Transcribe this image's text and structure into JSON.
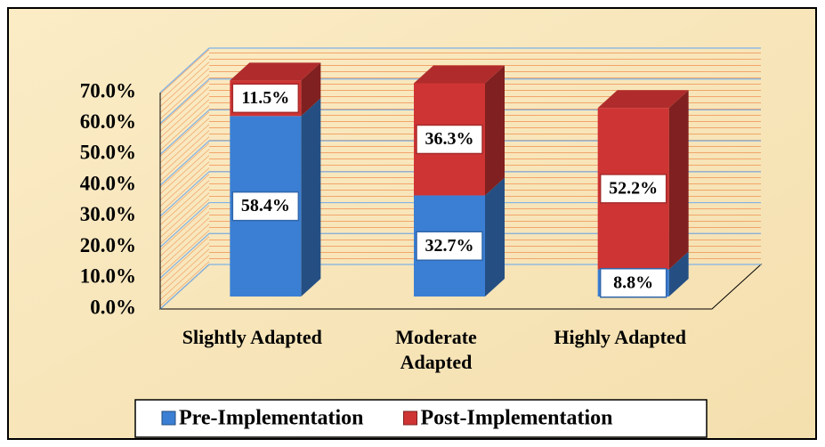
{
  "chart_data": {
    "type": "bar3d_stacked",
    "categories": [
      "Slightly Adapted",
      "Moderate Adapted",
      "Highly Adapted"
    ],
    "series": [
      {
        "name": "Pre-Implementation",
        "color": "#3b7fd4",
        "values": [
          58.4,
          32.7,
          8.8
        ],
        "value_labels": [
          "58.4%",
          "32.7%",
          "8.8%"
        ]
      },
      {
        "name": "Post-Implementation",
        "color": "#cf3434",
        "values": [
          11.5,
          36.3,
          52.2
        ],
        "value_labels": [
          "11.5%",
          "36.3%",
          "52.2%"
        ]
      }
    ],
    "ylim": [
      0,
      70
    ],
    "yticks": [
      {
        "value": 0,
        "label": "0.0%"
      },
      {
        "value": 10,
        "label": "10.0%"
      },
      {
        "value": 20,
        "label": "20.0%"
      },
      {
        "value": 30,
        "label": "30.0%"
      },
      {
        "value": 40,
        "label": "40.0%"
      },
      {
        "value": 50,
        "label": "50.0%"
      },
      {
        "value": 60,
        "label": "60.0%"
      },
      {
        "value": 70,
        "label": "70.0%"
      }
    ],
    "grid": true,
    "legend": "bottom"
  }
}
